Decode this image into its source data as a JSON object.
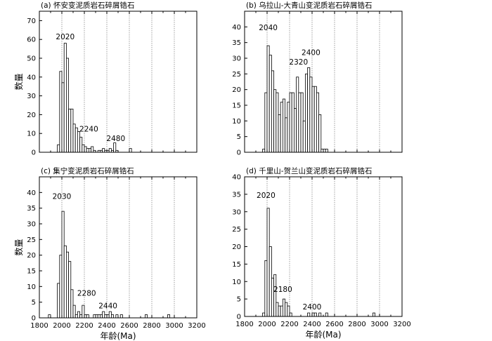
{
  "shared": {
    "xlabel": "年龄(Ma)",
    "ylabel": "数量",
    "xlim": [
      1800,
      3200
    ],
    "bin_width": 20,
    "x_tick_labels": [
      "1800",
      "2000",
      "2200",
      "2400",
      "2600",
      "2800",
      "3000",
      "3200"
    ]
  },
  "chart_data": [
    {
      "type": "bar",
      "title": "(a) 怀安变泥质岩石碎屑锆石",
      "xlabel": "",
      "ylabel": "数量",
      "xlim": [
        1800,
        3200
      ],
      "ylim": [
        0,
        75
      ],
      "y_ticks": [
        0,
        10,
        20,
        30,
        40,
        50,
        60,
        70
      ],
      "grid_x": [
        2000,
        2200,
        2400,
        2600,
        2800,
        3000
      ],
      "bins": [
        {
          "x": 1960,
          "v": 4
        },
        {
          "x": 1980,
          "v": 43
        },
        {
          "x": 2000,
          "v": 37
        },
        {
          "x": 2020,
          "v": 58
        },
        {
          "x": 2040,
          "v": 50
        },
        {
          "x": 2060,
          "v": 23
        },
        {
          "x": 2080,
          "v": 23
        },
        {
          "x": 2100,
          "v": 15
        },
        {
          "x": 2120,
          "v": 13
        },
        {
          "x": 2140,
          "v": 11
        },
        {
          "x": 2160,
          "v": 8
        },
        {
          "x": 2180,
          "v": 4
        },
        {
          "x": 2200,
          "v": 3
        },
        {
          "x": 2220,
          "v": 2
        },
        {
          "x": 2240,
          "v": 2
        },
        {
          "x": 2260,
          "v": 3
        },
        {
          "x": 2280,
          "v": 1
        },
        {
          "x": 2320,
          "v": 1
        },
        {
          "x": 2340,
          "v": 1
        },
        {
          "x": 2360,
          "v": 2
        },
        {
          "x": 2380,
          "v": 1
        },
        {
          "x": 2400,
          "v": 1
        },
        {
          "x": 2420,
          "v": 2
        },
        {
          "x": 2440,
          "v": 1
        },
        {
          "x": 2460,
          "v": 5
        },
        {
          "x": 2480,
          "v": 1
        },
        {
          "x": 2600,
          "v": 2
        }
      ],
      "annotations": [
        {
          "text": "2020",
          "x": 2030,
          "y": 60
        },
        {
          "text": "2240",
          "x": 2240,
          "y": 11
        },
        {
          "text": "2480",
          "x": 2480,
          "y": 6
        }
      ]
    },
    {
      "type": "bar",
      "title": "(b) 乌拉山-大青山变泥质岩石碎屑锆石",
      "xlabel": "",
      "ylabel": "",
      "xlim": [
        1800,
        3200
      ],
      "ylim": [
        0,
        45
      ],
      "y_ticks": [
        0,
        5,
        10,
        15,
        20,
        25,
        30,
        35,
        40
      ],
      "grid_x": [
        2000,
        2200,
        2400,
        2600,
        2800,
        3000
      ],
      "bins": [
        {
          "x": 1960,
          "v": 1
        },
        {
          "x": 1980,
          "v": 19
        },
        {
          "x": 2000,
          "v": 34
        },
        {
          "x": 2020,
          "v": 31
        },
        {
          "x": 2040,
          "v": 26
        },
        {
          "x": 2060,
          "v": 20
        },
        {
          "x": 2080,
          "v": 19
        },
        {
          "x": 2100,
          "v": 12
        },
        {
          "x": 2120,
          "v": 16
        },
        {
          "x": 2140,
          "v": 17
        },
        {
          "x": 2160,
          "v": 11
        },
        {
          "x": 2180,
          "v": 16
        },
        {
          "x": 2200,
          "v": 19
        },
        {
          "x": 2220,
          "v": 19
        },
        {
          "x": 2240,
          "v": 14
        },
        {
          "x": 2260,
          "v": 24
        },
        {
          "x": 2280,
          "v": 19
        },
        {
          "x": 2300,
          "v": 19
        },
        {
          "x": 2320,
          "v": 10
        },
        {
          "x": 2340,
          "v": 25
        },
        {
          "x": 2360,
          "v": 27
        },
        {
          "x": 2380,
          "v": 24
        },
        {
          "x": 2400,
          "v": 21
        },
        {
          "x": 2420,
          "v": 21
        },
        {
          "x": 2440,
          "v": 19
        },
        {
          "x": 2460,
          "v": 12
        },
        {
          "x": 2480,
          "v": 1
        },
        {
          "x": 2500,
          "v": 1
        },
        {
          "x": 2520,
          "v": 1
        }
      ],
      "annotations": [
        {
          "text": "2040",
          "x": 2010,
          "y": 39
        },
        {
          "text": "2320",
          "x": 2280,
          "y": 28
        },
        {
          "text": "2400",
          "x": 2390,
          "y": 31
        }
      ]
    },
    {
      "type": "bar",
      "title": "(c) 集宁变泥质岩石碎屑锆石",
      "xlabel": "年龄(Ma)",
      "ylabel": "数量",
      "xlim": [
        1800,
        3200
      ],
      "ylim": [
        0,
        45
      ],
      "y_ticks": [
        0,
        5,
        10,
        15,
        20,
        25,
        30,
        35,
        40
      ],
      "x_ticks": [
        1800,
        2000,
        2200,
        2400,
        2600,
        2800,
        3000,
        3200
      ],
      "grid_x": [
        2000,
        2200,
        2400,
        2600,
        2800,
        3000
      ],
      "bins": [
        {
          "x": 1880,
          "v": 1
        },
        {
          "x": 1960,
          "v": 11
        },
        {
          "x": 1980,
          "v": 20
        },
        {
          "x": 2000,
          "v": 34
        },
        {
          "x": 2020,
          "v": 23
        },
        {
          "x": 2040,
          "v": 21
        },
        {
          "x": 2060,
          "v": 18
        },
        {
          "x": 2080,
          "v": 9
        },
        {
          "x": 2100,
          "v": 4
        },
        {
          "x": 2120,
          "v": 1
        },
        {
          "x": 2140,
          "v": 2
        },
        {
          "x": 2160,
          "v": 1
        },
        {
          "x": 2180,
          "v": 4
        },
        {
          "x": 2200,
          "v": 1
        },
        {
          "x": 2220,
          "v": 1
        },
        {
          "x": 2280,
          "v": 1
        },
        {
          "x": 2300,
          "v": 1
        },
        {
          "x": 2320,
          "v": 1
        },
        {
          "x": 2340,
          "v": 1
        },
        {
          "x": 2360,
          "v": 2
        },
        {
          "x": 2380,
          "v": 1
        },
        {
          "x": 2400,
          "v": 1
        },
        {
          "x": 2420,
          "v": 2
        },
        {
          "x": 2440,
          "v": 1
        },
        {
          "x": 2480,
          "v": 1
        },
        {
          "x": 2520,
          "v": 1
        },
        {
          "x": 2740,
          "v": 1
        },
        {
          "x": 2940,
          "v": 1
        }
      ],
      "annotations": [
        {
          "text": "2030",
          "x": 2000,
          "y": 38
        },
        {
          "text": "2280",
          "x": 2220,
          "y": 7
        },
        {
          "text": "2440",
          "x": 2410,
          "y": 3
        }
      ]
    },
    {
      "type": "bar",
      "title": "(d) 千里山-贺兰山变泥质岩石碎屑锆石",
      "xlabel": "年龄(Ma)",
      "ylabel": "",
      "xlim": [
        1800,
        3200
      ],
      "ylim": [
        0,
        40
      ],
      "y_ticks": [
        0,
        5,
        10,
        15,
        20,
        25,
        30,
        35,
        40
      ],
      "x_ticks": [
        1800,
        2000,
        2200,
        2400,
        2600,
        2800,
        3000,
        3200
      ],
      "grid_x": [
        2000,
        2200,
        2400,
        2600,
        2800,
        3000
      ],
      "bins": [
        {
          "x": 1960,
          "v": 1
        },
        {
          "x": 1980,
          "v": 16
        },
        {
          "x": 2000,
          "v": 31
        },
        {
          "x": 2020,
          "v": 20
        },
        {
          "x": 2040,
          "v": 11
        },
        {
          "x": 2060,
          "v": 12
        },
        {
          "x": 2080,
          "v": 4
        },
        {
          "x": 2100,
          "v": 3
        },
        {
          "x": 2120,
          "v": 3
        },
        {
          "x": 2140,
          "v": 5
        },
        {
          "x": 2160,
          "v": 4
        },
        {
          "x": 2180,
          "v": 3
        },
        {
          "x": 2200,
          "v": 1
        },
        {
          "x": 2360,
          "v": 1
        },
        {
          "x": 2400,
          "v": 1
        },
        {
          "x": 2420,
          "v": 1
        },
        {
          "x": 2460,
          "v": 1
        },
        {
          "x": 2520,
          "v": 1
        },
        {
          "x": 2940,
          "v": 1
        }
      ],
      "annotations": [
        {
          "text": "2020",
          "x": 1990,
          "y": 34
        },
        {
          "text": "2180",
          "x": 2140,
          "y": 7
        },
        {
          "text": "2400",
          "x": 2400,
          "y": 2
        }
      ]
    }
  ]
}
